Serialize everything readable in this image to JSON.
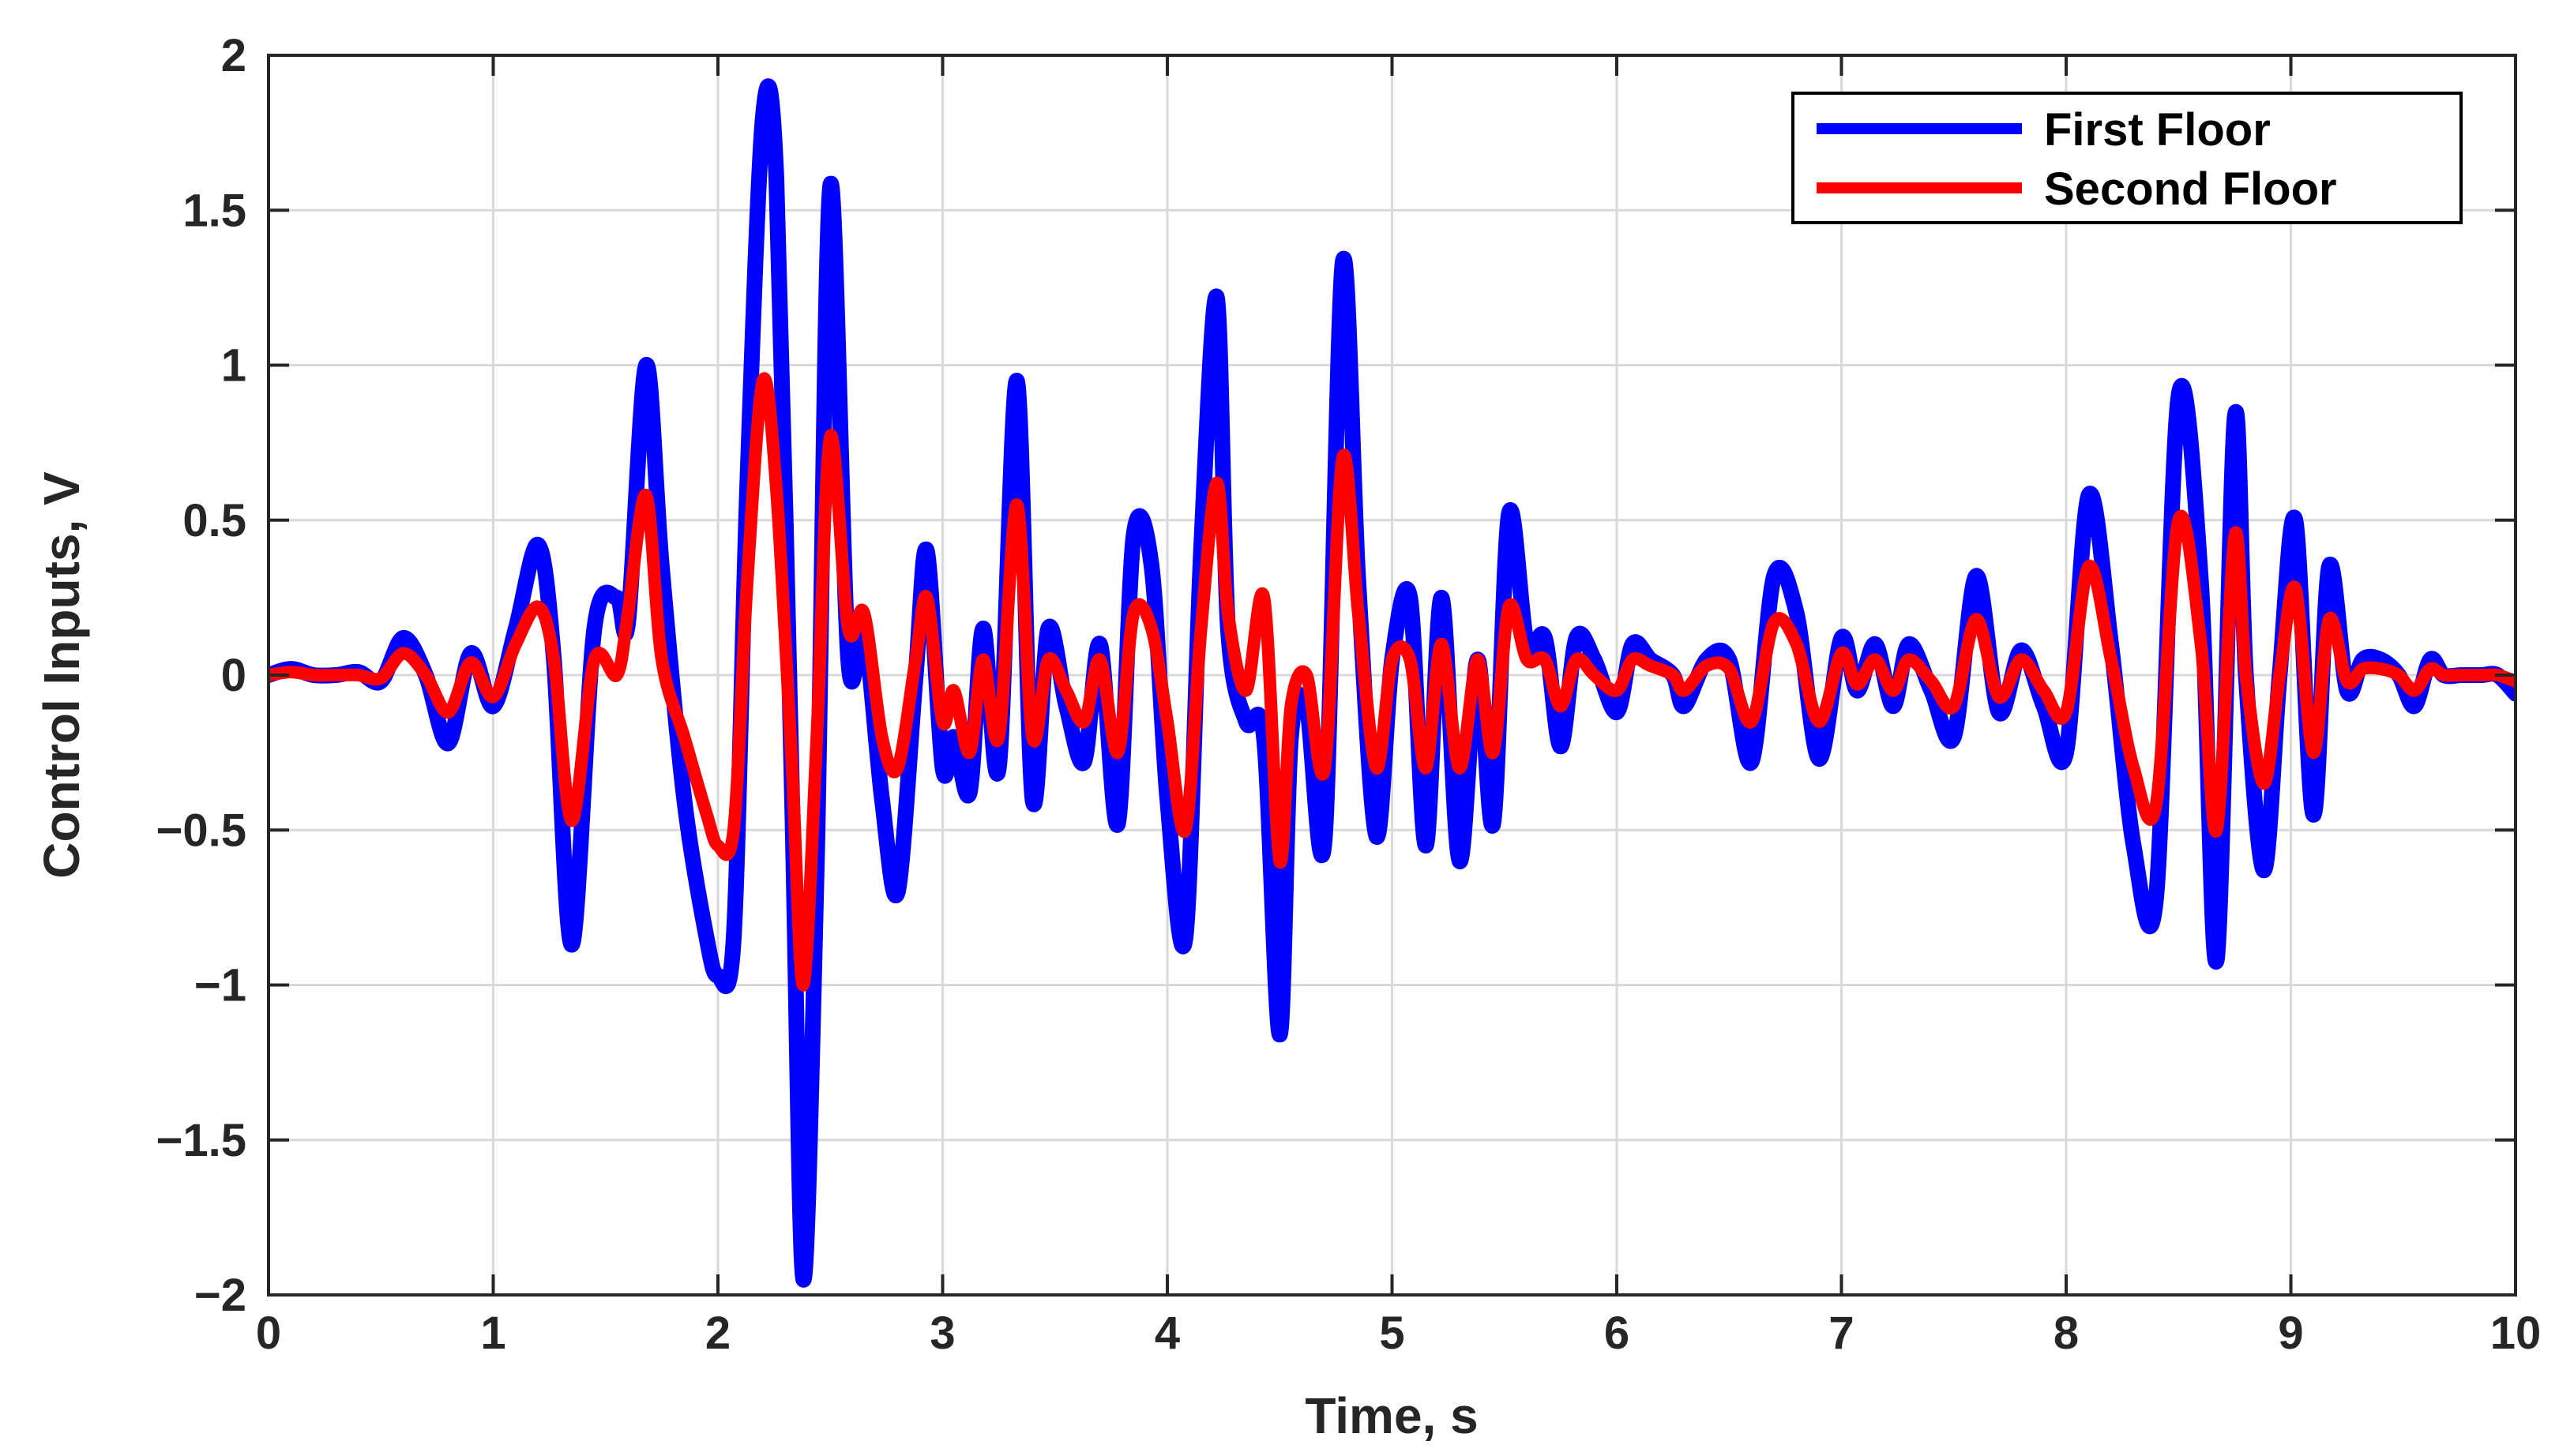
{
  "colors": {
    "first_floor": "#0000ff",
    "second_floor": "#ff0000",
    "grid": "#d9d9d9",
    "axes": "#262626"
  },
  "chart_data": {
    "type": "line",
    "title": "",
    "xlabel": "Time, s",
    "ylabel": "Control Inputs, V",
    "xlim": [
      0,
      10
    ],
    "ylim": [
      -2,
      2
    ],
    "xticks": [
      0,
      1,
      2,
      3,
      4,
      5,
      6,
      7,
      8,
      9,
      10
    ],
    "xtick_labels": [
      "0",
      "1",
      "2",
      "3",
      "4",
      "5",
      "6",
      "7",
      "8",
      "9",
      "10"
    ],
    "yticks": [
      2,
      1.5,
      1,
      0.5,
      0,
      -0.5,
      -1,
      -1.5,
      -2
    ],
    "ytick_labels": [
      "2",
      "1.5",
      "1",
      "0.5",
      "0",
      "−0.5",
      "−1",
      "−1.5",
      "−2"
    ],
    "grid": true,
    "box": true,
    "legend_position": "top-right",
    "series": [
      {
        "name": "First Floor",
        "color": "#0000ff",
        "x": [
          0,
          0.1,
          0.2,
          0.3,
          0.4,
          0.5,
          0.6,
          0.7,
          0.8,
          0.9,
          1.0,
          1.1,
          1.2,
          1.27,
          1.35,
          1.45,
          1.55,
          1.6,
          1.68,
          1.75,
          1.85,
          1.95,
          2.0,
          2.07,
          2.13,
          2.2,
          2.26,
          2.33,
          2.38,
          2.44,
          2.5,
          2.58,
          2.65,
          2.73,
          2.8,
          2.88,
          2.93,
          3.0,
          3.05,
          3.12,
          3.18,
          3.25,
          3.33,
          3.4,
          3.47,
          3.55,
          3.63,
          3.7,
          3.78,
          3.85,
          3.93,
          4.0,
          4.08,
          4.15,
          4.22,
          4.27,
          4.35,
          4.43,
          4.5,
          4.55,
          4.62,
          4.7,
          4.78,
          4.85,
          4.93,
          5.0,
          5.08,
          5.15,
          5.22,
          5.3,
          5.38,
          5.45,
          5.52,
          5.6,
          5.68,
          5.75,
          5.82,
          5.9,
          6.0,
          6.07,
          6.15,
          6.25,
          6.3,
          6.4,
          6.5,
          6.6,
          6.7,
          6.8,
          6.9,
          7.0,
          7.07,
          7.15,
          7.23,
          7.3,
          7.4,
          7.5,
          7.6,
          7.7,
          7.8,
          7.9,
          8.0,
          8.1,
          8.2,
          8.3,
          8.4,
          8.5,
          8.6,
          8.67,
          8.75,
          8.8,
          8.88,
          8.95,
          9.02,
          9.1,
          9.17,
          9.25,
          9.32,
          9.4,
          9.48,
          9.55,
          9.62,
          9.68,
          9.76,
          9.85,
          9.92,
          10.0
        ],
        "y": [
          0,
          0.02,
          0.0,
          0.0,
          0.01,
          -0.02,
          0.12,
          0.0,
          -0.22,
          0.07,
          -0.1,
          0.15,
          0.42,
          0.05,
          -0.87,
          0.15,
          0.25,
          0.17,
          1.0,
          0.35,
          -0.4,
          -0.85,
          -0.97,
          -0.85,
          0.6,
          1.8,
          1.6,
          -0.4,
          -1.95,
          -0.6,
          1.58,
          0.05,
          0.15,
          -0.4,
          -0.7,
          0.0,
          0.4,
          -0.3,
          -0.2,
          -0.38,
          0.15,
          -0.3,
          0.95,
          -0.4,
          0.15,
          -0.1,
          -0.28,
          0.1,
          -0.48,
          0.45,
          0.35,
          -0.4,
          -0.85,
          0.4,
          1.22,
          0.15,
          -0.15,
          -0.2,
          -1.16,
          -0.2,
          -0.1,
          -0.53,
          1.33,
          0.3,
          -0.52,
          0.05,
          0.25,
          -0.55,
          0.25,
          -0.6,
          0.05,
          -0.48,
          0.52,
          0.1,
          0.12,
          -0.23,
          0.12,
          0.05,
          -0.12,
          0.1,
          0.05,
          0.0,
          -0.1,
          0.05,
          0.05,
          -0.28,
          0.32,
          0.2,
          -0.27,
          0.12,
          -0.05,
          0.1,
          -0.1,
          0.1,
          -0.05,
          -0.2,
          0.32,
          -0.12,
          0.08,
          -0.1,
          -0.25,
          0.58,
          0.1,
          -0.55,
          -0.72,
          0.9,
          0.3,
          -0.92,
          0.83,
          0.0,
          -0.63,
          0.0,
          0.5,
          -0.45,
          0.35,
          -0.05,
          0.05,
          0.05,
          0.0,
          -0.1,
          0.05,
          0.0,
          0.0,
          0.0,
          0.0,
          -0.06
        ]
      },
      {
        "name": "Second Floor",
        "color": "#ff0000",
        "x": [
          0,
          0.1,
          0.2,
          0.3,
          0.4,
          0.5,
          0.6,
          0.7,
          0.8,
          0.9,
          1.0,
          1.1,
          1.2,
          1.27,
          1.35,
          1.45,
          1.55,
          1.6,
          1.68,
          1.75,
          1.85,
          1.95,
          2.0,
          2.07,
          2.13,
          2.2,
          2.26,
          2.33,
          2.38,
          2.44,
          2.5,
          2.58,
          2.65,
          2.73,
          2.8,
          2.88,
          2.93,
          3.0,
          3.05,
          3.12,
          3.18,
          3.25,
          3.33,
          3.4,
          3.47,
          3.55,
          3.63,
          3.7,
          3.78,
          3.85,
          3.93,
          4.0,
          4.08,
          4.15,
          4.22,
          4.27,
          4.35,
          4.43,
          4.5,
          4.55,
          4.62,
          4.7,
          4.78,
          4.85,
          4.93,
          5.0,
          5.08,
          5.15,
          5.22,
          5.3,
          5.38,
          5.45,
          5.52,
          5.6,
          5.68,
          5.75,
          5.82,
          5.9,
          6.0,
          6.07,
          6.15,
          6.25,
          6.3,
          6.4,
          6.5,
          6.6,
          6.7,
          6.8,
          6.9,
          7.0,
          7.07,
          7.15,
          7.23,
          7.3,
          7.4,
          7.5,
          7.6,
          7.7,
          7.8,
          7.9,
          8.0,
          8.1,
          8.2,
          8.3,
          8.4,
          8.5,
          8.6,
          8.67,
          8.75,
          8.8,
          8.88,
          8.95,
          9.02,
          9.1,
          9.17,
          9.25,
          9.32,
          9.4,
          9.48,
          9.55,
          9.62,
          9.68,
          9.76,
          9.85,
          9.92,
          10.0
        ],
        "y": [
          0,
          0.01,
          0.0,
          0.0,
          0.0,
          -0.01,
          0.07,
          0.0,
          -0.12,
          0.04,
          -0.07,
          0.1,
          0.22,
          0.05,
          -0.47,
          0.05,
          0.0,
          0.2,
          0.58,
          0.05,
          -0.2,
          -0.45,
          -0.55,
          -0.5,
          0.3,
          0.95,
          0.6,
          -0.3,
          -1.0,
          -0.2,
          0.77,
          0.15,
          0.2,
          -0.2,
          -0.3,
          0.05,
          0.25,
          -0.15,
          -0.05,
          -0.25,
          0.05,
          -0.2,
          0.55,
          -0.2,
          0.05,
          -0.05,
          -0.15,
          0.05,
          -0.25,
          0.2,
          0.15,
          -0.15,
          -0.5,
          0.15,
          0.62,
          0.2,
          -0.05,
          0.25,
          -0.6,
          -0.1,
          0.0,
          -0.3,
          0.7,
          0.2,
          -0.3,
          0.05,
          0.05,
          -0.3,
          0.1,
          -0.3,
          0.05,
          -0.25,
          0.22,
          0.05,
          0.05,
          -0.1,
          0.05,
          0.0,
          -0.05,
          0.05,
          0.03,
          0.0,
          -0.05,
          0.03,
          0.02,
          -0.15,
          0.17,
          0.1,
          -0.15,
          0.07,
          -0.03,
          0.05,
          -0.05,
          0.05,
          -0.02,
          -0.1,
          0.18,
          -0.07,
          0.05,
          -0.05,
          -0.12,
          0.35,
          0.05,
          -0.3,
          -0.42,
          0.5,
          0.1,
          -0.5,
          0.45,
          0.0,
          -0.35,
          0.0,
          0.28,
          -0.25,
          0.18,
          -0.02,
          0.02,
          0.02,
          0.0,
          -0.05,
          0.02,
          0.0,
          0.0,
          0.0,
          0.0,
          -0.02
        ]
      }
    ]
  }
}
